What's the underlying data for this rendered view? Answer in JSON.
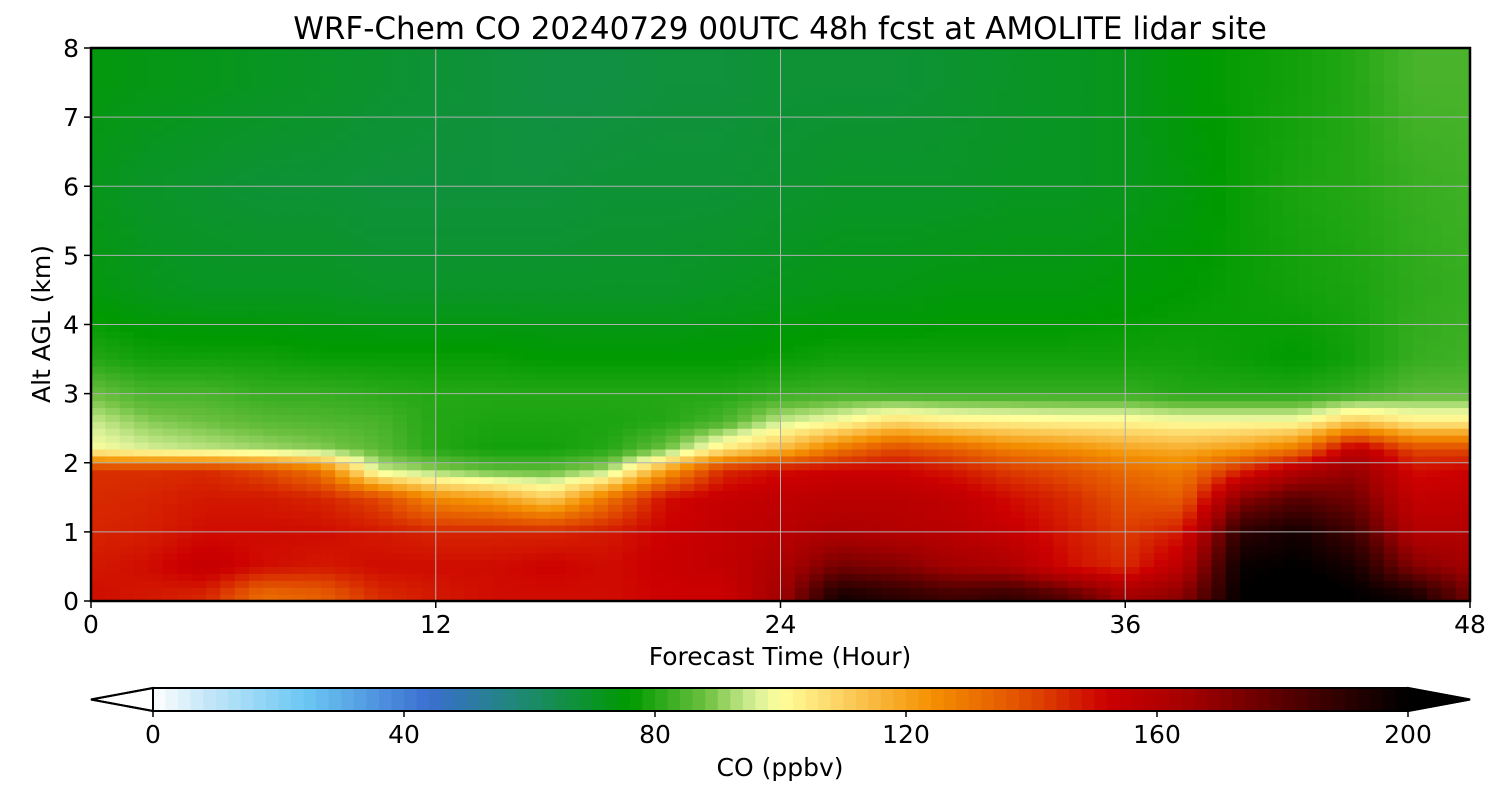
{
  "chart_data": {
    "type": "heatmap",
    "title": "WRF-Chem CO  20240729 00UTC 48h fcst at AMOLITE lidar site",
    "xlabel": "Forecast Time (Hour)",
    "ylabel": "Alt AGL (km)",
    "xlim": [
      0,
      48
    ],
    "ylim": [
      0,
      8
    ],
    "xticks": [
      0,
      12,
      24,
      36,
      48
    ],
    "yticks": [
      0,
      1,
      2,
      3,
      4,
      5,
      6,
      7,
      8
    ],
    "grid": true,
    "x_hours": [
      0,
      2,
      4,
      6,
      8,
      10,
      12,
      14,
      16,
      18,
      20,
      22,
      24,
      26,
      28,
      30,
      32,
      34,
      36,
      38,
      40,
      42,
      44,
      46,
      48
    ],
    "pbl_top_km": [
      2.0,
      2.1,
      2.15,
      2.15,
      2.1,
      1.8,
      1.55,
      1.55,
      1.6,
      1.8,
      2.1,
      2.2,
      2.4,
      2.6,
      2.85,
      2.65,
      2.7,
      2.75,
      2.75,
      2.65,
      2.6,
      2.5,
      2.95,
      2.6,
      2.7
    ],
    "z_levels_km": [
      0.1,
      0.5,
      1.0,
      1.5,
      1.9,
      2.2,
      2.6,
      3.0,
      3.5,
      4.5,
      6.0,
      7.5
    ],
    "co_ppbv_columns": [
      [
        150,
        148,
        146,
        145,
        144,
        100,
        95,
        88,
        80,
        74,
        72,
        74
      ],
      [
        148,
        150,
        147,
        146,
        144,
        96,
        90,
        84,
        78,
        72,
        70,
        73
      ],
      [
        146,
        155,
        150,
        148,
        145,
        94,
        88,
        84,
        78,
        71,
        69,
        72
      ],
      [
        132,
        150,
        150,
        148,
        140,
        92,
        86,
        82,
        78,
        71,
        68,
        71
      ],
      [
        135,
        148,
        150,
        146,
        130,
        90,
        85,
        82,
        77,
        71,
        68,
        70
      ],
      [
        145,
        150,
        148,
        140,
        95,
        86,
        84,
        81,
        77,
        70,
        67,
        69
      ],
      [
        148,
        150,
        146,
        125,
        90,
        80,
        80,
        80,
        77,
        70,
        67,
        68
      ],
      [
        150,
        150,
        146,
        120,
        86,
        78,
        79,
        80,
        77,
        70,
        67,
        67
      ],
      [
        150,
        152,
        146,
        110,
        86,
        78,
        79,
        80,
        76,
        70,
        67,
        66
      ],
      [
        150,
        150,
        148,
        130,
        92,
        80,
        79,
        80,
        76,
        70,
        68,
        66
      ],
      [
        152,
        153,
        152,
        150,
        120,
        88,
        80,
        80,
        76,
        70,
        68,
        67
      ],
      [
        152,
        155,
        155,
        154,
        145,
        105,
        84,
        80,
        76,
        71,
        68,
        67
      ],
      [
        165,
        162,
        158,
        156,
        150,
        115,
        95,
        82,
        77,
        72,
        69,
        68
      ],
      [
        195,
        175,
        162,
        158,
        152,
        130,
        100,
        83,
        78,
        73,
        70,
        68
      ],
      [
        190,
        172,
        160,
        158,
        152,
        140,
        108,
        82,
        78,
        73,
        70,
        68
      ],
      [
        185,
        165,
        158,
        156,
        148,
        135,
        104,
        82,
        78,
        74,
        70,
        69
      ],
      [
        188,
        162,
        154,
        150,
        142,
        128,
        103,
        82,
        78,
        74,
        71,
        70
      ],
      [
        180,
        150,
        148,
        145,
        138,
        125,
        102,
        82,
        78,
        74,
        71,
        71
      ],
      [
        165,
        145,
        142,
        138,
        132,
        120,
        102,
        82,
        78,
        75,
        72,
        72
      ],
      [
        170,
        158,
        148,
        135,
        128,
        118,
        100,
        80,
        78,
        76,
        74,
        75
      ],
      [
        200,
        198,
        190,
        170,
        145,
        122,
        100,
        80,
        77,
        77,
        77,
        77
      ],
      [
        205,
        200,
        196,
        180,
        160,
        130,
        100,
        80,
        76,
        78,
        79,
        78
      ],
      [
        200,
        195,
        185,
        175,
        168,
        158,
        112,
        82,
        78,
        79,
        80,
        80
      ],
      [
        195,
        172,
        160,
        155,
        150,
        140,
        104,
        86,
        82,
        81,
        82,
        84
      ],
      [
        175,
        165,
        160,
        156,
        152,
        140,
        104,
        86,
        83,
        82,
        83,
        84
      ]
    ],
    "colorbar": {
      "label": "CO  (ppbv)",
      "min": 0,
      "max": 200,
      "ticks": [
        0,
        40,
        80,
        120,
        160,
        200
      ],
      "extend": "both",
      "stops": [
        [
          0,
          "#ffffff"
        ],
        [
          8,
          "#c8e8f8"
        ],
        [
          24,
          "#6cc8f4"
        ],
        [
          44,
          "#3a6ed0"
        ],
        [
          58,
          "#1f8878"
        ],
        [
          76,
          "#009a00"
        ],
        [
          88,
          "#6cc040"
        ],
        [
          96,
          "#d8f098"
        ],
        [
          100,
          "#ffff9c"
        ],
        [
          110,
          "#fcd060"
        ],
        [
          124,
          "#f49000"
        ],
        [
          140,
          "#e04800"
        ],
        [
          152,
          "#cc0000"
        ],
        [
          166,
          "#a00000"
        ],
        [
          182,
          "#500000"
        ],
        [
          200,
          "#000000"
        ]
      ]
    }
  }
}
